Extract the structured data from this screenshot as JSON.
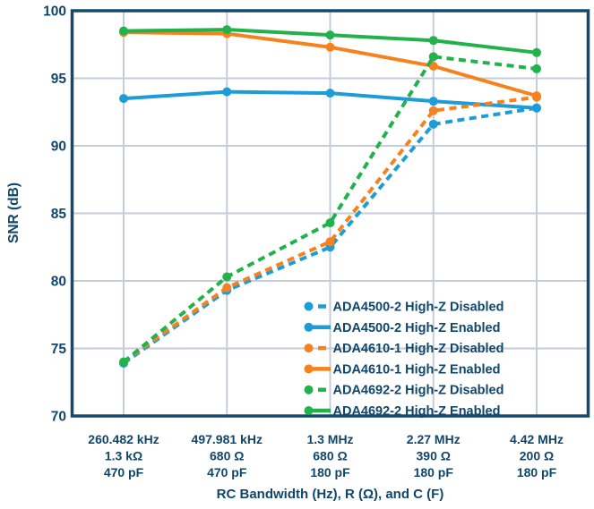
{
  "chart_data": {
    "type": "line",
    "title": "",
    "xlabel": "RC Bandwidth (Hz), R (Ω), and C (F)",
    "ylabel": "SNR (dB)",
    "ylim": [
      70,
      100
    ],
    "yticks": [
      70,
      75,
      80,
      85,
      90,
      95,
      100
    ],
    "grid": true,
    "legend_position": "inside-bottom-right",
    "categories": [
      {
        "lines": [
          "260.482 kHz",
          "1.3 kΩ",
          "470 pF"
        ]
      },
      {
        "lines": [
          "497.981 kHz",
          "680 Ω",
          "470 pF"
        ]
      },
      {
        "lines": [
          "1.3 MHz",
          "680 Ω",
          "180 pF"
        ]
      },
      {
        "lines": [
          "2.27 MHz",
          "390 Ω",
          "180 pF"
        ]
      },
      {
        "lines": [
          "4.42 MHz",
          "200 Ω",
          "180 pF"
        ]
      }
    ],
    "series": [
      {
        "name": "ADA4500-2 High-Z Disabled",
        "color": "#1E9CD7",
        "style": "dashed",
        "values": [
          73.9,
          79.3,
          82.5,
          91.6,
          92.8
        ]
      },
      {
        "name": "ADA4500-2 High-Z Enabled",
        "color": "#1E9CD7",
        "style": "solid",
        "values": [
          93.5,
          94.0,
          93.9,
          93.3,
          92.8
        ]
      },
      {
        "name": "ADA4610-1 High-Z Disabled",
        "color": "#F5821F",
        "style": "dashed",
        "values": [
          74.0,
          79.5,
          82.9,
          92.6,
          93.6
        ]
      },
      {
        "name": "ADA4610-1 High-Z Enabled",
        "color": "#F5821F",
        "style": "solid",
        "values": [
          98.4,
          98.3,
          97.3,
          95.9,
          93.7
        ]
      },
      {
        "name": "ADA4692-2 High-Z Disabled",
        "color": "#22B24C",
        "style": "dashed",
        "values": [
          74.0,
          80.3,
          84.3,
          96.6,
          95.7
        ]
      },
      {
        "name": "ADA4692-2 High-Z Enabled",
        "color": "#22B24C",
        "style": "solid",
        "values": [
          98.5,
          98.6,
          98.2,
          97.8,
          96.9
        ]
      }
    ],
    "colors": {
      "axis_frame": "#15486B",
      "label_text": "#11466B",
      "gridline": "#C5CED8",
      "background": "#FFFFFF"
    }
  }
}
